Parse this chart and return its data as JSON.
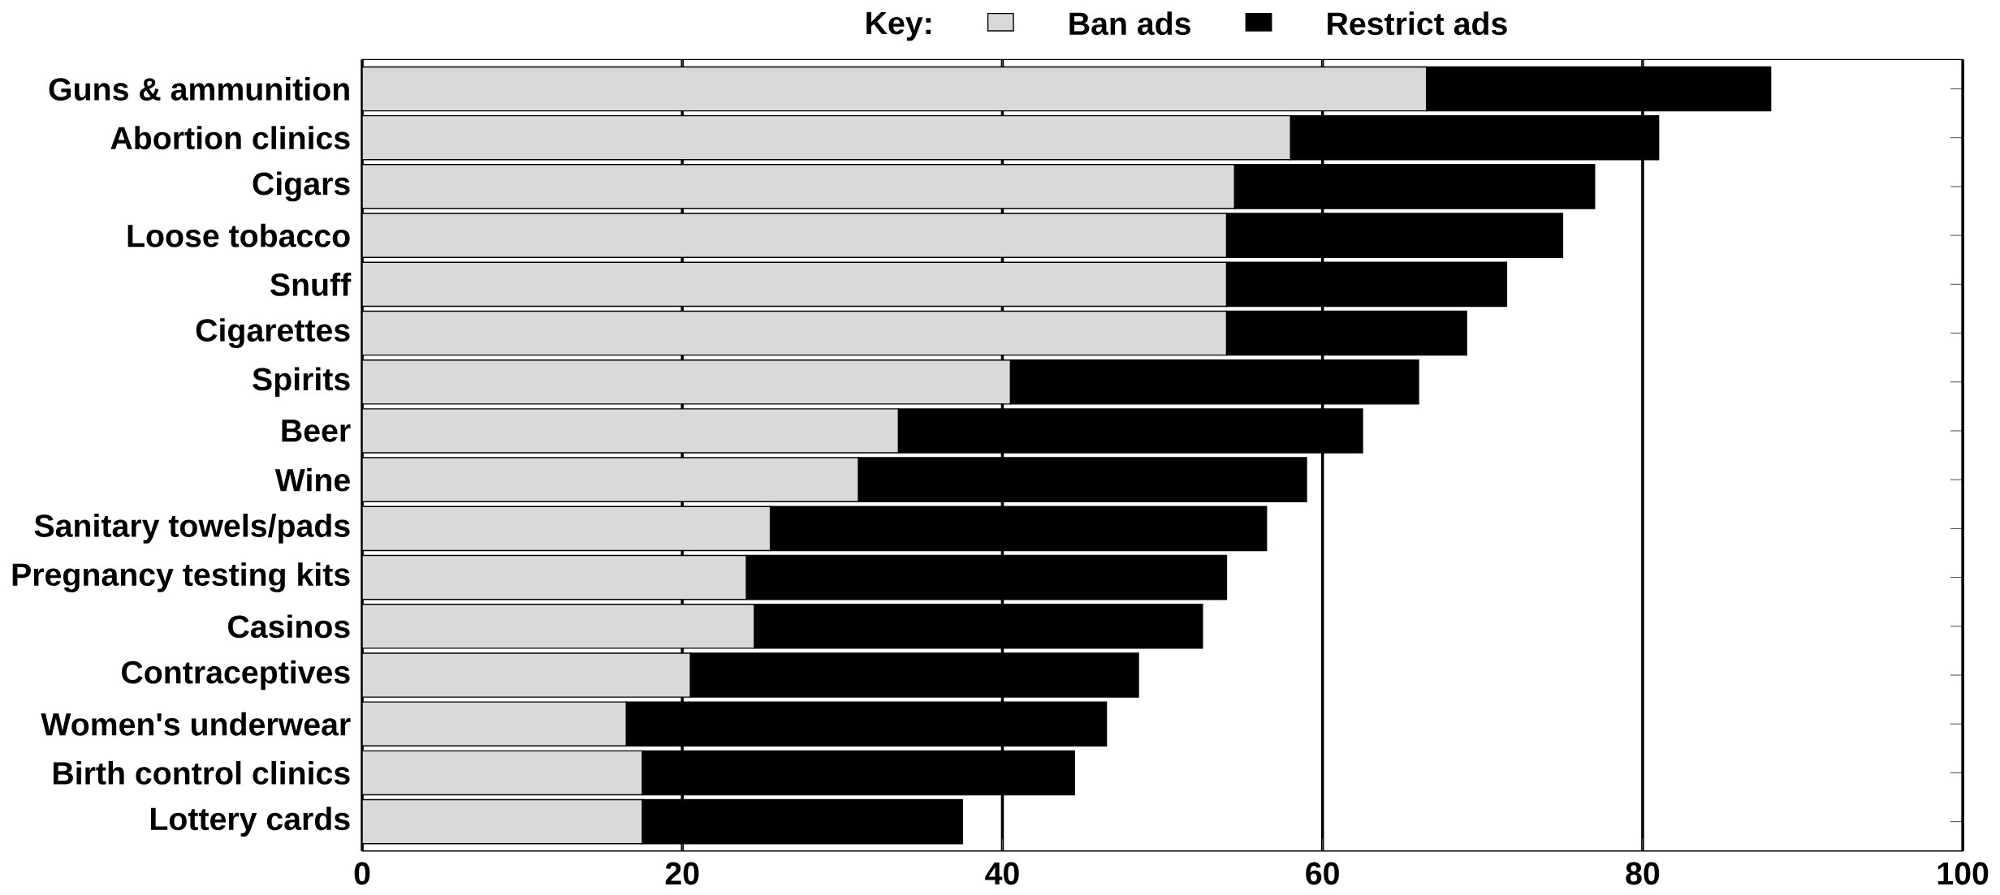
{
  "chart_data": {
    "type": "bar",
    "orientation": "horizontal",
    "stacked": true,
    "legend_title": "Key:",
    "legend": "top",
    "categories": [
      "Guns & ammunition",
      "Abortion clinics",
      "Cigars",
      "Loose tobacco",
      "Snuff",
      "Cigarettes",
      "Spirits",
      "Beer",
      "Wine",
      "Sanitary towels/pads",
      "Pregnancy testing kits",
      "Casinos",
      "Contraceptives",
      "Women's underwear",
      "Birth control clinics",
      "Lottery cards"
    ],
    "series": [
      {
        "name": "Ban ads",
        "color": "#d9d9d9",
        "values": [
          66.5,
          58,
          54.5,
          54,
          54,
          54,
          40.5,
          33.5,
          31,
          25.5,
          24,
          24.5,
          20.5,
          16.5,
          17.5,
          17.5
        ]
      },
      {
        "name": "Restrict ads",
        "color": "#000000",
        "values": [
          21.5,
          23,
          22.5,
          21,
          17.5,
          15,
          25.5,
          29,
          28,
          31,
          30,
          28,
          28,
          30,
          27,
          20
        ]
      }
    ],
    "xlim": [
      0,
      100
    ],
    "xticks": [
      0,
      20,
      40,
      60,
      80,
      100
    ],
    "grid": "x"
  }
}
